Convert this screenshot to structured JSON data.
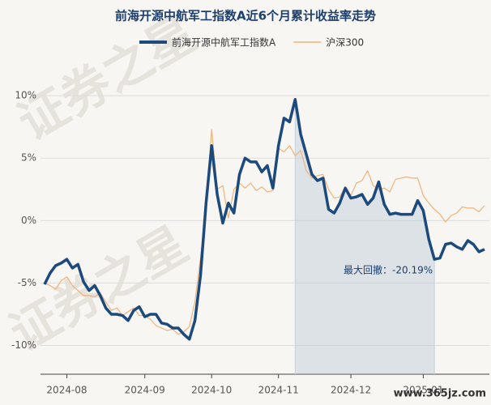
{
  "chart_data": {
    "type": "line",
    "title": "前海开源中航军工指数A近6个月累计收益率走势",
    "watermark": "证券之星",
    "watermark2": "www.365jz.com",
    "annotation": "最大回撤：-20.19%",
    "categories": [
      null,
      null,
      null,
      null,
      "2024-08",
      null,
      null,
      null,
      null,
      null,
      null,
      null,
      null,
      null,
      null,
      null,
      null,
      null,
      "2024-09",
      null,
      null,
      null,
      null,
      null,
      null,
      null,
      null,
      null,
      null,
      null,
      "2024-10",
      null,
      null,
      null,
      null,
      null,
      null,
      null,
      null,
      null,
      null,
      null,
      "2024-11",
      null,
      null,
      null,
      null,
      null,
      null,
      null,
      null,
      null,
      null,
      null,
      null,
      "2024-12",
      null,
      null,
      null,
      null,
      null,
      null,
      null,
      null,
      null,
      null,
      null,
      null,
      "2025-01",
      null,
      null,
      null,
      null,
      null,
      null,
      null,
      null,
      null,
      null,
      null
    ],
    "series": [
      {
        "name": "前海开源中航军工指数A",
        "color": "#1c4a7d",
        "values": [
          -5.1,
          -4.2,
          -3.6,
          -3.4,
          -3.1,
          -3.8,
          -3.5,
          -4.9,
          -5.6,
          -5.2,
          -6.0,
          -7.0,
          -7.5,
          -7.5,
          -7.6,
          -8.0,
          -7.2,
          -6.9,
          -7.7,
          -7.5,
          -7.5,
          -8.2,
          -8.3,
          -8.6,
          -8.6,
          -9.1,
          -9.5,
          -8.0,
          -4.4,
          1.4,
          6.0,
          2.1,
          -0.2,
          1.4,
          0.6,
          3.7,
          5.0,
          4.7,
          4.7,
          3.9,
          4.4,
          2.6,
          6.0,
          8.2,
          7.9,
          9.7,
          6.9,
          5.3,
          3.7,
          3.2,
          3.4,
          0.9,
          0.6,
          1.4,
          2.6,
          1.8,
          1.9,
          2.1,
          1.3,
          1.8,
          3.1,
          1.3,
          0.5,
          0.6,
          0.5,
          0.5,
          0.5,
          1.6,
          0.8,
          -1.5,
          -3.1,
          -3.0,
          -1.9,
          -1.8,
          -2.1,
          -2.3,
          -1.6,
          -1.9,
          -2.5,
          -2.3
        ]
      },
      {
        "name": "沪深300",
        "color": "#f0b27a",
        "values": [
          -5.0,
          -5.2,
          -5.5,
          -4.8,
          -4.5,
          -5.2,
          -5.6,
          -6.0,
          -6.0,
          -6.1,
          -5.8,
          -6.5,
          -7.2,
          -7.0,
          -7.6,
          -7.3,
          -7.0,
          -7.6,
          -7.6,
          -7.9,
          -8.4,
          -8.6,
          -8.8,
          -8.7,
          -9.1,
          -8.9,
          -8.5,
          -6.5,
          -3.0,
          1.0,
          7.3,
          2.5,
          2.8,
          0.2,
          2.5,
          3.0,
          2.6,
          3.0,
          2.4,
          2.7,
          2.3,
          2.4,
          5.8,
          5.5,
          6.0,
          5.2,
          5.6,
          4.0,
          3.4,
          3.6,
          3.7,
          2.5,
          1.8,
          1.9,
          2.7,
          2.0,
          3.0,
          3.2,
          4.0,
          2.8,
          2.5,
          2.6,
          2.3,
          3.3,
          3.4,
          3.5,
          3.4,
          3.4,
          2.0,
          1.4,
          0.9,
          0.5,
          -0.1,
          0.4,
          0.6,
          1.1,
          1.0,
          1.0,
          0.7,
          1.2
        ]
      }
    ],
    "ylim": [
      -12.3,
      11.5
    ],
    "yticks": [
      {
        "value": -10,
        "label": "-10%"
      },
      {
        "value": -5,
        "label": "-5%"
      },
      {
        "value": 0,
        "label": "0%"
      },
      {
        "value": 5,
        "label": "5%"
      },
      {
        "value": 10,
        "label": "10%"
      }
    ],
    "grid": true
  }
}
